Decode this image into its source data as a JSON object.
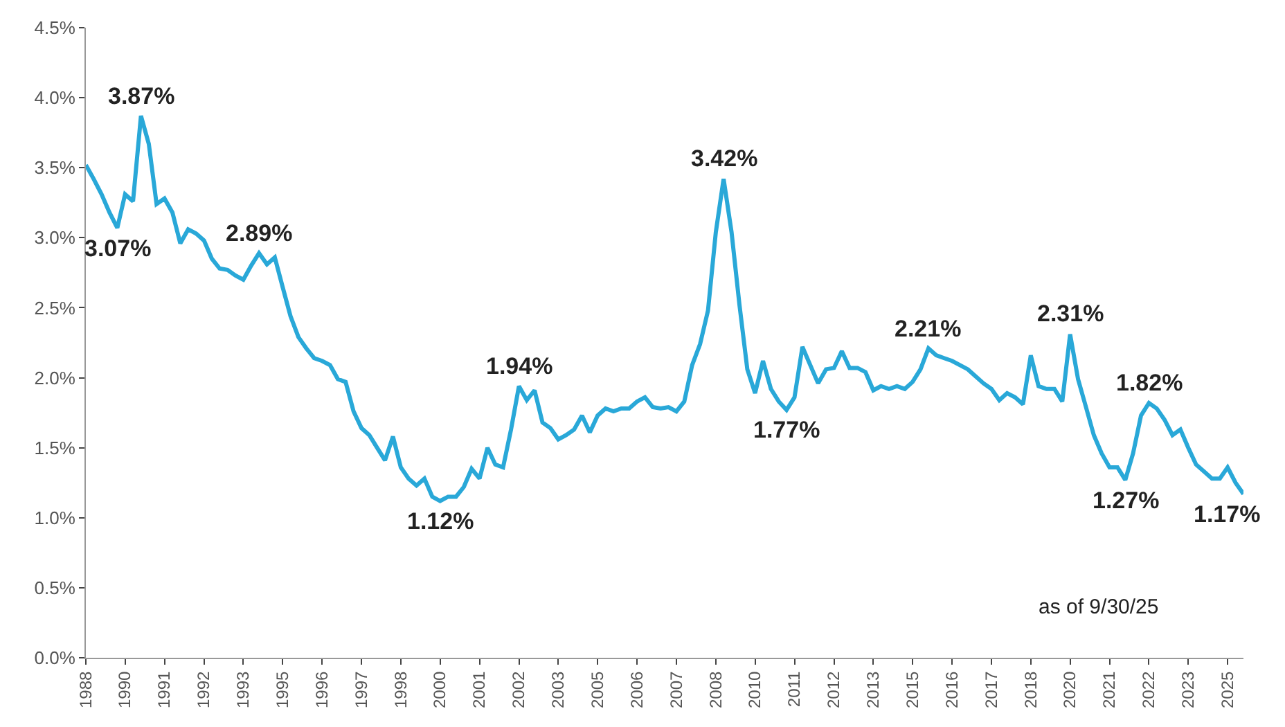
{
  "chart_data": {
    "type": "line",
    "x": [
      "1988-12",
      "1989-03",
      "1989-06",
      "1989-09",
      "1989-12",
      "1990-03",
      "1990-06",
      "1990-09",
      "1990-12",
      "1991-03",
      "1991-06",
      "1991-09",
      "1991-12",
      "1992-03",
      "1992-06",
      "1992-09",
      "1992-12",
      "1993-03",
      "1993-06",
      "1993-09",
      "1993-12",
      "1994-03",
      "1994-06",
      "1994-09",
      "1994-12",
      "1995-03",
      "1995-06",
      "1995-09",
      "1995-12",
      "1996-03",
      "1996-06",
      "1996-09",
      "1996-12",
      "1997-03",
      "1997-06",
      "1997-09",
      "1997-12",
      "1998-03",
      "1998-06",
      "1998-09",
      "1998-12",
      "1999-03",
      "1999-06",
      "1999-09",
      "1999-12",
      "2000-03",
      "2000-06",
      "2000-09",
      "2000-12",
      "2001-03",
      "2001-06",
      "2001-09",
      "2001-12",
      "2002-03",
      "2002-06",
      "2002-09",
      "2002-12",
      "2003-03",
      "2003-06",
      "2003-09",
      "2003-12",
      "2004-03",
      "2004-06",
      "2004-09",
      "2004-12",
      "2005-03",
      "2005-06",
      "2005-09",
      "2005-12",
      "2006-03",
      "2006-06",
      "2006-09",
      "2006-12",
      "2007-03",
      "2007-06",
      "2007-09",
      "2007-12",
      "2008-03",
      "2008-06",
      "2008-09",
      "2008-12",
      "2009-03",
      "2009-06",
      "2009-09",
      "2009-12",
      "2010-03",
      "2010-06",
      "2010-09",
      "2010-12",
      "2011-03",
      "2011-06",
      "2011-09",
      "2011-12",
      "2012-03",
      "2012-06",
      "2012-09",
      "2012-12",
      "2013-03",
      "2013-06",
      "2013-09",
      "2013-12",
      "2014-03",
      "2014-06",
      "2014-09",
      "2014-12",
      "2015-03",
      "2015-06",
      "2015-09",
      "2015-12",
      "2016-03",
      "2016-06",
      "2016-09",
      "2016-12",
      "2017-03",
      "2017-06",
      "2017-09",
      "2017-12",
      "2018-03",
      "2018-06",
      "2018-09",
      "2018-12",
      "2019-03",
      "2019-06",
      "2019-09",
      "2019-12",
      "2020-03",
      "2020-06",
      "2020-09",
      "2020-12",
      "2021-03",
      "2021-06",
      "2021-09",
      "2021-12",
      "2022-03",
      "2022-06",
      "2022-09",
      "2022-12",
      "2023-03",
      "2023-06",
      "2023-09",
      "2023-12",
      "2024-03",
      "2024-06",
      "2024-09",
      "2024-12",
      "2025-03",
      "2025-06",
      "2025-09"
    ],
    "series": [
      {
        "color": "#29a8d8",
        "values": [
          3.52,
          3.42,
          3.31,
          3.18,
          3.07,
          3.31,
          3.26,
          3.87,
          3.67,
          3.24,
          3.28,
          3.18,
          2.96,
          3.06,
          3.03,
          2.98,
          2.85,
          2.78,
          2.77,
          2.73,
          2.7,
          2.8,
          2.89,
          2.81,
          2.86,
          2.65,
          2.44,
          2.29,
          2.21,
          2.14,
          2.12,
          2.09,
          1.99,
          1.97,
          1.76,
          1.64,
          1.59,
          1.5,
          1.41,
          1.58,
          1.36,
          1.28,
          1.23,
          1.28,
          1.15,
          1.12,
          1.15,
          1.15,
          1.22,
          1.35,
          1.28,
          1.5,
          1.38,
          1.36,
          1.63,
          1.94,
          1.84,
          1.91,
          1.68,
          1.64,
          1.56,
          1.59,
          1.63,
          1.73,
          1.61,
          1.73,
          1.78,
          1.76,
          1.78,
          1.78,
          1.83,
          1.86,
          1.79,
          1.78,
          1.79,
          1.76,
          1.83,
          2.09,
          2.24,
          2.48,
          3.04,
          3.42,
          3.04,
          2.52,
          2.06,
          1.89,
          2.12,
          1.92,
          1.83,
          1.77,
          1.86,
          2.22,
          2.09,
          1.96,
          2.06,
          2.07,
          2.19,
          2.07,
          2.07,
          2.04,
          1.91,
          1.94,
          1.92,
          1.94,
          1.92,
          1.97,
          2.06,
          2.21,
          2.16,
          2.14,
          2.12,
          2.09,
          2.06,
          2.01,
          1.96,
          1.92,
          1.84,
          1.89,
          1.86,
          1.81,
          2.16,
          1.94,
          1.92,
          1.92,
          1.83,
          2.31,
          1.99,
          1.79,
          1.59,
          1.46,
          1.36,
          1.36,
          1.27,
          1.46,
          1.73,
          1.82,
          1.78,
          1.7,
          1.59,
          1.63,
          1.5,
          1.38,
          1.33,
          1.28,
          1.28,
          1.36,
          1.25,
          1.17
        ]
      }
    ],
    "xlim": [
      "1988-12",
      "2025-09"
    ],
    "xticks": [
      {
        "value": "1988-12",
        "label": "1988"
      },
      {
        "value": "1990-03",
        "label": "1990"
      },
      {
        "value": "1991-06",
        "label": "1991"
      },
      {
        "value": "1992-09",
        "label": "1992"
      },
      {
        "value": "1993-12",
        "label": "1993"
      },
      {
        "value": "1995-03",
        "label": "1995"
      },
      {
        "value": "1996-06",
        "label": "1996"
      },
      {
        "value": "1997-09",
        "label": "1997"
      },
      {
        "value": "1998-12",
        "label": "1998"
      },
      {
        "value": "2000-03",
        "label": "2000"
      },
      {
        "value": "2001-06",
        "label": "2001"
      },
      {
        "value": "2002-09",
        "label": "2002"
      },
      {
        "value": "2003-12",
        "label": "2003"
      },
      {
        "value": "2005-03",
        "label": "2005"
      },
      {
        "value": "2006-06",
        "label": "2006"
      },
      {
        "value": "2007-09",
        "label": "2007"
      },
      {
        "value": "2008-12",
        "label": "2008"
      },
      {
        "value": "2010-03",
        "label": "2010"
      },
      {
        "value": "2011-06",
        "label": "2011"
      },
      {
        "value": "2012-09",
        "label": "2012"
      },
      {
        "value": "2013-12",
        "label": "2013"
      },
      {
        "value": "2015-03",
        "label": "2015"
      },
      {
        "value": "2016-06",
        "label": "2016"
      },
      {
        "value": "2017-09",
        "label": "2017"
      },
      {
        "value": "2018-12",
        "label": "2018"
      },
      {
        "value": "2020-03",
        "label": "2020"
      },
      {
        "value": "2021-06",
        "label": "2021"
      },
      {
        "value": "2022-09",
        "label": "2022"
      },
      {
        "value": "2023-12",
        "label": "2023"
      },
      {
        "value": "2025-03",
        "label": "2025"
      }
    ],
    "ylim": [
      0,
      4.5
    ],
    "yticks": [
      {
        "value": 0,
        "label": "0.0%"
      },
      {
        "value": 0.5,
        "label": "0.5%"
      },
      {
        "value": 1,
        "label": "1.0%"
      },
      {
        "value": 1.5,
        "label": "1.5%"
      },
      {
        "value": 2,
        "label": "2.0%"
      },
      {
        "value": 2.5,
        "label": "2.5%"
      },
      {
        "value": 3,
        "label": "3.0%"
      },
      {
        "value": 3.5,
        "label": "3.5%"
      },
      {
        "value": 4,
        "label": "4.0%"
      },
      {
        "value": 4.5,
        "label": "4.5%"
      }
    ],
    "line_style": "solid",
    "annotations": [
      {
        "text": "3.07%",
        "x": "1989-12",
        "y": 3.07
      },
      {
        "text": "3.87%",
        "x": "1990-09",
        "y": 3.87
      },
      {
        "text": "2.89%",
        "x": "1994-06",
        "y": 2.89
      },
      {
        "text": "1.12%",
        "x": "2000-03",
        "y": 1.12
      },
      {
        "text": "1.94%",
        "x": "2002-09",
        "y": 1.94
      },
      {
        "text": "3.42%",
        "x": "2009-03",
        "y": 3.42
      },
      {
        "text": "1.77%",
        "x": "2011-03",
        "y": 1.77
      },
      {
        "text": "2.21%",
        "x": "2015-09",
        "y": 2.21
      },
      {
        "text": "2.31%",
        "x": "2020-03",
        "y": 2.31
      },
      {
        "text": "1.27%",
        "x": "2021-12",
        "y": 1.27
      },
      {
        "text": "1.82%",
        "x": "2022-09",
        "y": 1.82
      },
      {
        "text": "1.17%",
        "x": "2025-09",
        "y": 1.17
      },
      "as of 9/30/25"
    ]
  }
}
